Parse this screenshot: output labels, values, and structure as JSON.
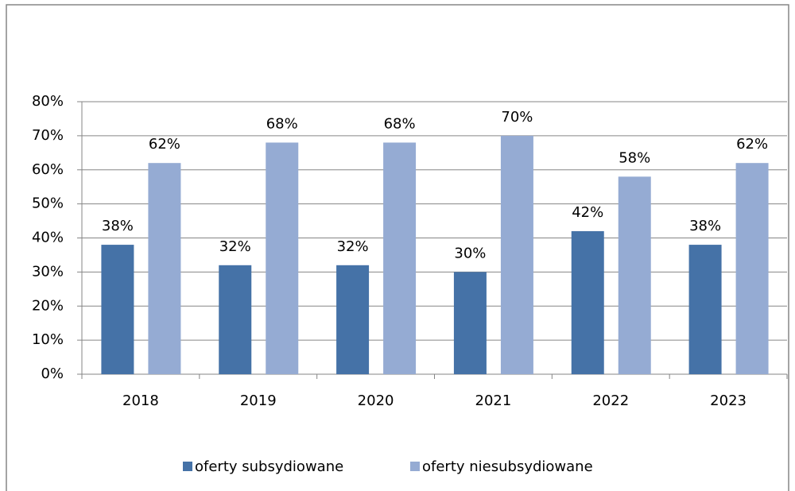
{
  "chart_data": {
    "type": "bar",
    "categories": [
      "2018",
      "2019",
      "2020",
      "2021",
      "2022",
      "2023"
    ],
    "series": [
      {
        "name": "oferty subsydiowane",
        "color": "#4572a7",
        "values": [
          38,
          32,
          32,
          30,
          42,
          38
        ],
        "value_labels": [
          "38%",
          "32%",
          "32%",
          "30%",
          "42%",
          "38%"
        ]
      },
      {
        "name": "oferty niesubsydiowane",
        "color": "#95abd3",
        "values": [
          62,
          68,
          68,
          70,
          58,
          62
        ],
        "value_labels": [
          "62%",
          "68%",
          "68%",
          "70%",
          "58%",
          "62%"
        ]
      }
    ],
    "ylim": [
      0,
      80
    ],
    "yticks": [
      {
        "value": 0,
        "label": "0%"
      },
      {
        "value": 10,
        "label": "10%"
      },
      {
        "value": 20,
        "label": "20%"
      },
      {
        "value": 30,
        "label": "30%"
      },
      {
        "value": 40,
        "label": "40%"
      },
      {
        "value": 50,
        "label": "50%"
      },
      {
        "value": 60,
        "label": "60%"
      },
      {
        "value": 70,
        "label": "70%"
      },
      {
        "value": 80,
        "label": "80%"
      }
    ],
    "grid": true,
    "legend": "bottom"
  }
}
